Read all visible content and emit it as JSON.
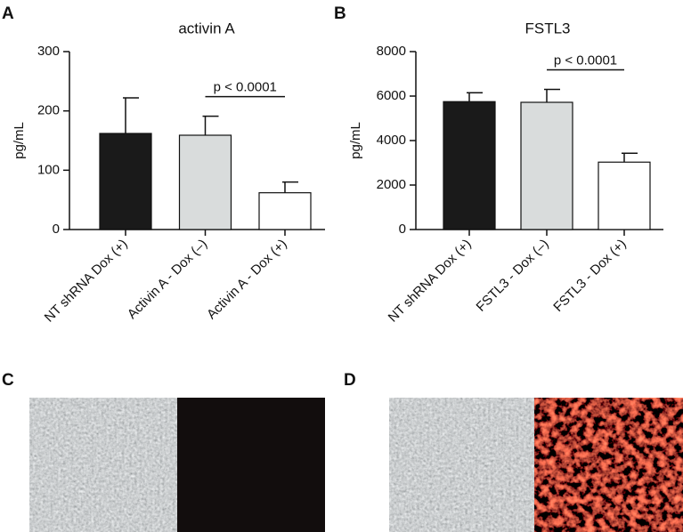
{
  "chart_data": [
    {
      "type": "bar",
      "panel": "A",
      "title": "activin A",
      "y_label": "pg/mL",
      "categories": [
        "NT shRNA Dox (+)",
        "Activin A - Dox (–)",
        "Activin A - Dox (+)"
      ],
      "values": [
        162,
        159,
        62
      ],
      "errors": [
        60,
        32,
        18
      ],
      "colors": [
        "#1a1a1a",
        "#d9dcdc",
        "#ffffff"
      ],
      "ylim": [
        0,
        300
      ],
      "yticks": [
        0,
        100,
        200,
        300
      ],
      "annotation": "p < 0.0001"
    },
    {
      "type": "bar",
      "panel": "B",
      "title": "FSTL3",
      "y_label": "pg/mL",
      "categories": [
        "NT shRNA Dox (+)",
        "FSTL3 - Dox (–)",
        "FSTL3 - Dox (+)"
      ],
      "values": [
        5750,
        5720,
        3030
      ],
      "errors": [
        400,
        580,
        400
      ],
      "colors": [
        "#1a1a1a",
        "#d9dcdc",
        "#ffffff"
      ],
      "ylim": [
        0,
        8000
      ],
      "yticks": [
        0,
        2000,
        4000,
        6000,
        8000
      ],
      "annotation": "p < 0.0001"
    }
  ],
  "images": [
    {
      "panel": "C"
    },
    {
      "panel": "D"
    }
  ]
}
